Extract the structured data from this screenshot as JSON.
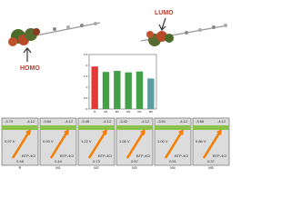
{
  "labels": {
    "homo": "HOMO",
    "lumo": "LUMO"
  },
  "chart_data": {
    "type": "bar",
    "categories": [
      "R",
      "M1",
      "M2",
      "M3",
      "M4",
      "M5"
    ],
    "values": [
      1.95,
      1.7,
      1.75,
      1.68,
      1.72,
      1.4
    ],
    "colors": [
      "#e53935",
      "#43a047",
      "#43a047",
      "#43a047",
      "#43a047",
      "#5f9ea0"
    ],
    "ylim": [
      0,
      2.5
    ],
    "yticks": [
      0,
      0.5,
      1,
      1.5,
      2,
      2.5
    ]
  },
  "panels": [
    {
      "lumo": "-3.79",
      "acceptor_lumo": "-4.12",
      "voc": "0.97 V",
      "acceptor": "BTP-4Cl",
      "offset": "0.48",
      "name": "R"
    },
    {
      "lumo": "-3.84",
      "acceptor_lumo": "-4.12",
      "voc": "0.93 V",
      "acceptor": "BTP-4Cl",
      "offset": "0.44",
      "name": "M1"
    },
    {
      "lumo": "-3.45",
      "acceptor_lumo": "-4.12",
      "voc": "1.22 V",
      "acceptor": "BTP-4Cl",
      "offset": "0.73",
      "name": "M2"
    },
    {
      "lumo": "-3.42",
      "acceptor_lumo": "-4.12",
      "voc": "1.06 V",
      "acceptor": "BTP-4Cl",
      "offset": "0.57",
      "name": "M3"
    },
    {
      "lumo": "-3.51",
      "acceptor_lumo": "-4.12",
      "voc": "1.00 V",
      "acceptor": "BTP-4Cl",
      "offset": "0.51",
      "name": "M4"
    },
    {
      "lumo": "-3.66",
      "acceptor_lumo": "-4.12",
      "voc": "0.86 V",
      "acceptor": "BTP-4Cl",
      "offset": "0.37",
      "name": "M5"
    }
  ]
}
